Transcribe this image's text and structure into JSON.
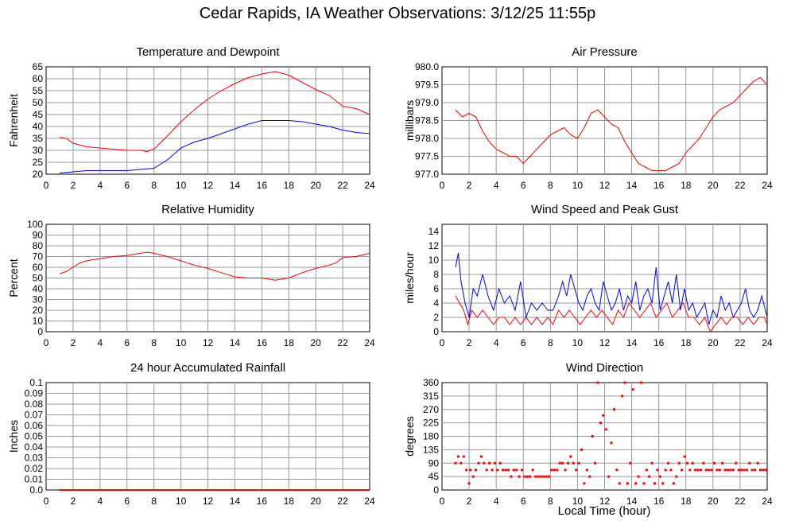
{
  "title": "Cedar Rapids, IA Weather Observations: 3/12/25 11:55p",
  "x_axis_label": "Local Time (hour)",
  "chart_data": [
    {
      "id": "temp",
      "type": "line",
      "title": "Temperature and Dewpoint",
      "xlabel": "",
      "ylabel": "Fahrenheit",
      "xlim": [
        0,
        24
      ],
      "ylim": [
        20,
        65
      ],
      "xticks": [
        2,
        4,
        6,
        8,
        10,
        12,
        14,
        16,
        18,
        20,
        22,
        24
      ],
      "yticks": [
        20,
        25,
        30,
        35,
        40,
        45,
        50,
        55,
        60,
        65
      ],
      "ytick_decimals": 0,
      "grid": true,
      "colors": [
        "#ff0000",
        "#0000ff"
      ],
      "series": [
        {
          "x": [
            1.0,
            1.5,
            2.0,
            3.0,
            4.0,
            5.0,
            6.0,
            7.0,
            7.5,
            8.0,
            9.0,
            10.0,
            11.0,
            12.0,
            13.0,
            14.0,
            15.0,
            16.0,
            17.0,
            18.0,
            19.0,
            20.0,
            21.0,
            22.0,
            23.0,
            24.0
          ],
          "y": [
            35.5,
            35,
            33,
            31.5,
            31,
            30.5,
            30,
            30,
            29.5,
            30.5,
            36,
            42,
            47,
            51.5,
            55,
            58,
            60.5,
            62,
            63,
            61.5,
            58.5,
            55.5,
            53,
            48.5,
            47.5,
            45
          ]
        },
        {
          "x": [
            1.0,
            2.0,
            3.0,
            4.0,
            5.0,
            6.0,
            7.0,
            8.0,
            9.0,
            10.0,
            11.0,
            12.0,
            13.0,
            14.0,
            15.0,
            16.0,
            17.0,
            18.0,
            19.0,
            20.0,
            21.0,
            22.0,
            23.0,
            24.0
          ],
          "y": [
            20.5,
            21,
            21.5,
            21.5,
            21.5,
            21.5,
            22,
            22.5,
            26,
            31,
            33.5,
            35,
            37,
            39,
            41,
            42.5,
            42.5,
            42.5,
            42,
            41,
            40,
            38.5,
            37.5,
            37
          ]
        }
      ]
    },
    {
      "id": "pressure",
      "type": "line",
      "title": "Air Pressure",
      "xlabel": "",
      "ylabel": "millibars",
      "xlim": [
        0,
        24
      ],
      "ylim": [
        977.0,
        980.0
      ],
      "xticks": [
        2,
        4,
        6,
        8,
        10,
        12,
        14,
        16,
        18,
        20,
        22,
        24
      ],
      "yticks": [
        977.0,
        977.5,
        978.0,
        978.5,
        979.0,
        979.5,
        980.0
      ],
      "ytick_decimals": 1,
      "grid": true,
      "colors": [
        "#ff0000"
      ],
      "series": [
        {
          "x": [
            1.0,
            1.5,
            2.0,
            2.5,
            3.0,
            3.5,
            4.0,
            4.5,
            5.0,
            5.5,
            6.0,
            6.5,
            7.0,
            7.5,
            8.0,
            8.5,
            9.0,
            9.5,
            10.0,
            10.5,
            11.0,
            11.5,
            12.0,
            12.5,
            13.0,
            13.5,
            14.0,
            14.5,
            15.0,
            15.5,
            16.0,
            16.5,
            17.0,
            17.5,
            18.0,
            18.5,
            19.0,
            19.5,
            20.0,
            20.5,
            21.0,
            21.5,
            22.0,
            22.5,
            23.0,
            23.5,
            24.0
          ],
          "y": [
            978.8,
            978.6,
            978.7,
            978.6,
            978.2,
            977.9,
            977.7,
            977.6,
            977.5,
            977.5,
            977.3,
            977.5,
            977.7,
            977.9,
            978.1,
            978.2,
            978.3,
            978.1,
            978.0,
            978.3,
            978.7,
            978.8,
            978.6,
            978.4,
            978.3,
            977.9,
            977.6,
            977.3,
            977.2,
            977.1,
            977.1,
            977.1,
            977.2,
            977.3,
            977.6,
            977.8,
            978.0,
            978.3,
            978.6,
            978.8,
            978.9,
            979.0,
            979.2,
            979.4,
            979.6,
            979.7,
            979.5
          ]
        }
      ]
    },
    {
      "id": "humidity",
      "type": "line",
      "title": "Relative Humidity",
      "xlabel": "",
      "ylabel": "Percent",
      "xlim": [
        0,
        24
      ],
      "ylim": [
        0,
        100
      ],
      "xticks": [
        2,
        4,
        6,
        8,
        10,
        12,
        14,
        16,
        18,
        20,
        22,
        24
      ],
      "yticks": [
        0,
        10,
        20,
        30,
        40,
        50,
        60,
        70,
        80,
        90,
        100
      ],
      "ytick_decimals": 0,
      "grid": true,
      "colors": [
        "#ff0000"
      ],
      "series": [
        {
          "x": [
            1.0,
            1.5,
            2.0,
            2.5,
            3.0,
            4.0,
            5.0,
            6.0,
            7.0,
            7.5,
            8.0,
            9.0,
            10.0,
            11.0,
            12.0,
            13.0,
            14.0,
            15.0,
            16.0,
            17.0,
            18.0,
            19.0,
            20.0,
            21.0,
            21.5,
            22.0,
            23.0,
            24.0
          ],
          "y": [
            54,
            56,
            60,
            64,
            66,
            68,
            70,
            71,
            73,
            74,
            73,
            70,
            66,
            62,
            59,
            55,
            51,
            50,
            50,
            48,
            50,
            55,
            59,
            62,
            64,
            69,
            70,
            73
          ]
        }
      ]
    },
    {
      "id": "wind",
      "type": "line",
      "title": "Wind Speed and Peak Gust",
      "xlabel": "",
      "ylabel": "miles/hour",
      "xlim": [
        0,
        24
      ],
      "ylim": [
        0,
        15
      ],
      "xticks": [
        2,
        4,
        6,
        8,
        10,
        12,
        14,
        16,
        18,
        20,
        22,
        24
      ],
      "yticks": [
        0,
        2,
        4,
        6,
        8,
        10,
        12,
        14
      ],
      "ytick_decimals": 0,
      "grid": true,
      "colors": [
        "#ff0000",
        "#0000ff"
      ],
      "series": [
        {
          "x": [
            1.0,
            1.3,
            1.6,
            1.9,
            2.2,
            2.6,
            3.0,
            3.4,
            3.8,
            4.2,
            4.6,
            5.0,
            5.4,
            5.8,
            6.2,
            6.6,
            7.0,
            7.4,
            7.8,
            8.2,
            8.6,
            9.0,
            9.4,
            9.8,
            10.2,
            10.6,
            11.0,
            11.4,
            11.8,
            12.2,
            12.6,
            13.0,
            13.4,
            13.8,
            14.2,
            14.6,
            15.0,
            15.4,
            15.8,
            16.2,
            16.6,
            17.0,
            17.4,
            17.8,
            18.2,
            18.6,
            19.0,
            19.4,
            19.8,
            20.2,
            20.6,
            21.0,
            21.4,
            21.8,
            22.2,
            22.6,
            23.0,
            23.4,
            23.8,
            24.0
          ],
          "y": [
            5,
            4,
            3,
            1,
            3,
            2,
            3,
            2,
            1,
            2,
            2,
            1,
            2,
            1,
            2,
            1,
            2,
            1,
            2,
            1,
            3,
            2,
            3,
            2,
            1,
            2,
            3,
            2,
            3,
            2,
            1,
            3,
            2,
            4,
            3,
            2,
            3,
            4,
            2,
            3,
            4,
            2,
            3,
            4,
            2,
            2,
            1,
            2,
            0,
            1,
            2,
            1,
            2,
            2,
            1,
            2,
            1,
            2,
            2,
            1
          ]
        },
        {
          "x": [
            1.0,
            1.2,
            1.4,
            1.7,
            2.0,
            2.3,
            2.6,
            3.0,
            3.4,
            3.8,
            4.2,
            4.6,
            5.0,
            5.4,
            5.8,
            6.2,
            6.6,
            7.0,
            7.4,
            7.8,
            8.2,
            8.6,
            8.9,
            9.2,
            9.5,
            9.8,
            10.1,
            10.4,
            10.7,
            11.0,
            11.3,
            11.6,
            11.9,
            12.2,
            12.5,
            12.8,
            13.1,
            13.4,
            13.7,
            14.0,
            14.3,
            14.6,
            14.9,
            15.2,
            15.5,
            15.8,
            16.1,
            16.4,
            16.7,
            17.0,
            17.3,
            17.6,
            17.9,
            18.2,
            18.5,
            18.8,
            19.1,
            19.4,
            19.7,
            20.0,
            20.3,
            20.6,
            20.9,
            21.2,
            21.5,
            21.8,
            22.1,
            22.4,
            22.7,
            23.0,
            23.3,
            23.6,
            24.0
          ],
          "y": [
            9,
            11,
            7,
            4,
            2,
            6,
            5,
            8,
            5,
            3,
            6,
            4,
            5,
            3,
            7,
            2,
            4,
            3,
            4,
            3,
            3,
            5,
            7,
            5,
            8,
            6,
            4,
            3,
            5,
            6,
            4,
            3,
            7,
            5,
            3,
            4,
            6,
            3,
            5,
            4,
            7,
            3,
            5,
            6,
            4,
            9,
            3,
            5,
            7,
            4,
            8,
            3,
            6,
            3,
            4,
            2,
            3,
            4,
            1,
            3,
            2,
            5,
            3,
            4,
            2,
            3,
            4,
            6,
            3,
            2,
            3,
            5,
            2
          ]
        }
      ]
    },
    {
      "id": "rainfall",
      "type": "line",
      "title": "24 hour Accumulated Rainfall",
      "xlabel": "",
      "ylabel": "Inches",
      "xlim": [
        0,
        24
      ],
      "ylim": [
        0,
        0.1
      ],
      "xticks": [
        2,
        4,
        6,
        8,
        10,
        12,
        14,
        16,
        18,
        20,
        22,
        24
      ],
      "yticks": [
        0.0,
        0.01,
        0.02,
        0.03,
        0.04,
        0.05,
        0.06,
        0.07,
        0.08,
        0.09,
        0.1
      ],
      "ytick_labels": [
        "0.0",
        "0.01",
        "0.02",
        "0.03",
        "0.04",
        "0.05",
        "0.06",
        "0.07",
        "0.08",
        "0.09",
        "0.1"
      ],
      "grid": true,
      "colors": [
        "#ff0000"
      ],
      "series": [
        {
          "x": [
            1.0,
            24.0
          ],
          "y": [
            0.0,
            0.0
          ]
        }
      ]
    },
    {
      "id": "direction",
      "type": "scatter",
      "title": "Wind Direction",
      "xlabel": "Local Time (hour)",
      "ylabel": "degrees",
      "xlim": [
        0,
        24
      ],
      "ylim": [
        0,
        360
      ],
      "xticks": [
        2,
        4,
        6,
        8,
        10,
        12,
        14,
        16,
        18,
        20,
        22,
        24
      ],
      "yticks": [
        0,
        45,
        90,
        135,
        180,
        225,
        270,
        315,
        360
      ],
      "ytick_decimals": 0,
      "grid": true,
      "colors": [
        "#ff0000"
      ],
      "series": [
        {
          "x": [
            1.0,
            1.2,
            1.4,
            1.6,
            1.8,
            2.0,
            2.1,
            2.3,
            2.5,
            2.7,
            2.9,
            3.1,
            3.3,
            3.5,
            3.7,
            3.9,
            4.1,
            4.3,
            4.5,
            4.7,
            4.9,
            5.1,
            5.3,
            5.5,
            5.7,
            5.9,
            6.1,
            6.3,
            6.5,
            6.7,
            6.9,
            7.1,
            7.3,
            7.5,
            7.7,
            7.9,
            8.1,
            8.3,
            8.5,
            8.7,
            8.9,
            9.1,
            9.3,
            9.5,
            9.7,
            9.9,
            10.1,
            10.3,
            10.5,
            10.7,
            10.9,
            11.1,
            11.3,
            11.5,
            11.7,
            11.9,
            12.1,
            12.3,
            12.5,
            12.7,
            12.9,
            13.1,
            13.3,
            13.5,
            13.7,
            13.9,
            14.1,
            14.3,
            14.5,
            14.7,
            14.9,
            15.1,
            15.3,
            15.5,
            15.7,
            15.9,
            16.1,
            16.3,
            16.5,
            16.7,
            16.9,
            17.1,
            17.3,
            17.5,
            17.7,
            17.9,
            18.1,
            18.3,
            18.5,
            18.7,
            18.9,
            19.1,
            19.3,
            19.5,
            19.7,
            19.9,
            20.1,
            20.3,
            20.5,
            20.7,
            20.9,
            21.1,
            21.3,
            21.5,
            21.7,
            21.9,
            22.1,
            22.3,
            22.5,
            22.7,
            22.9,
            23.1,
            23.3,
            23.5,
            23.7,
            23.9
          ],
          "y": [
            90,
            112,
            90,
            112,
            67,
            22,
            67,
            45,
            67,
            90,
            112,
            90,
            67,
            90,
            67,
            90,
            67,
            90,
            67,
            67,
            67,
            45,
            67,
            67,
            45,
            67,
            45,
            45,
            45,
            67,
            45,
            45,
            45,
            45,
            45,
            45,
            67,
            67,
            67,
            90,
            90,
            67,
            90,
            112,
            90,
            67,
            90,
            135,
            22,
            67,
            45,
            180,
            90,
            360,
            225,
            250,
            203,
            45,
            158,
            270,
            67,
            22,
            315,
            360,
            22,
            90,
            337,
            22,
            45,
            360,
            22,
            67,
            45,
            90,
            22,
            67,
            45,
            22,
            67,
            90,
            67,
            22,
            45,
            90,
            67,
            112,
            90,
            67,
            90,
            67,
            67,
            67,
            90,
            67,
            67,
            67,
            90,
            67,
            67,
            90,
            67,
            67,
            67,
            67,
            90,
            67,
            67,
            67,
            67,
            90,
            67,
            67,
            90,
            67,
            67,
            67
          ]
        }
      ]
    }
  ]
}
